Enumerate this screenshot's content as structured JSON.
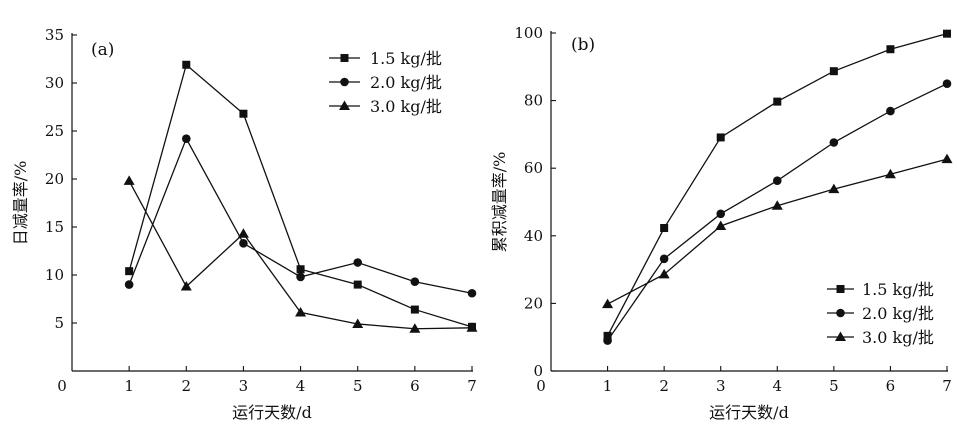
{
  "chart_data": [
    {
      "type": "line",
      "panel_label": "(a)",
      "xlabel": "运行天数/d",
      "ylabel": "日减量率/%",
      "xlim": [
        0,
        7
      ],
      "ylim": [
        0,
        35
      ],
      "xticks": [
        0,
        1,
        2,
        3,
        4,
        5,
        6,
        7
      ],
      "yticks": [
        5,
        10,
        15,
        20,
        25,
        30,
        35
      ],
      "legend_position": "top-right",
      "x": [
        1,
        2,
        3,
        4,
        5,
        6,
        7
      ],
      "series": [
        {
          "name": "1.5 kg/批",
          "marker": "square",
          "values": [
            10.4,
            31.9,
            26.8,
            10.6,
            9.0,
            6.4,
            4.6
          ]
        },
        {
          "name": "2.0 kg/批",
          "marker": "circle",
          "values": [
            9.0,
            24.2,
            13.3,
            9.8,
            11.3,
            9.3,
            8.1
          ]
        },
        {
          "name": "3.0 kg/批",
          "marker": "triangle",
          "values": [
            19.8,
            8.8,
            14.3,
            6.1,
            4.9,
            4.4,
            4.5
          ]
        }
      ]
    },
    {
      "type": "line",
      "panel_label": "(b)",
      "xlabel": "运行天数/d",
      "ylabel": "累积减量率/%",
      "xlim": [
        0,
        7
      ],
      "ylim": [
        0,
        100
      ],
      "xticks": [
        0,
        1,
        2,
        3,
        4,
        5,
        6,
        7
      ],
      "yticks": [
        0,
        20,
        40,
        60,
        80,
        100
      ],
      "legend_position": "bottom-right",
      "x": [
        1,
        2,
        3,
        4,
        5,
        6,
        7
      ],
      "series": [
        {
          "name": "1.5 kg/批",
          "marker": "square",
          "values": [
            10.4,
            42.3,
            69.1,
            79.7,
            88.7,
            95.2,
            99.8
          ]
        },
        {
          "name": "2.0 kg/批",
          "marker": "circle",
          "values": [
            9.0,
            33.2,
            46.5,
            56.3,
            67.6,
            76.9,
            85.0
          ]
        },
        {
          "name": "3.0 kg/批",
          "marker": "triangle",
          "values": [
            19.8,
            28.6,
            42.9,
            48.9,
            53.8,
            58.2,
            62.7
          ]
        }
      ]
    }
  ]
}
